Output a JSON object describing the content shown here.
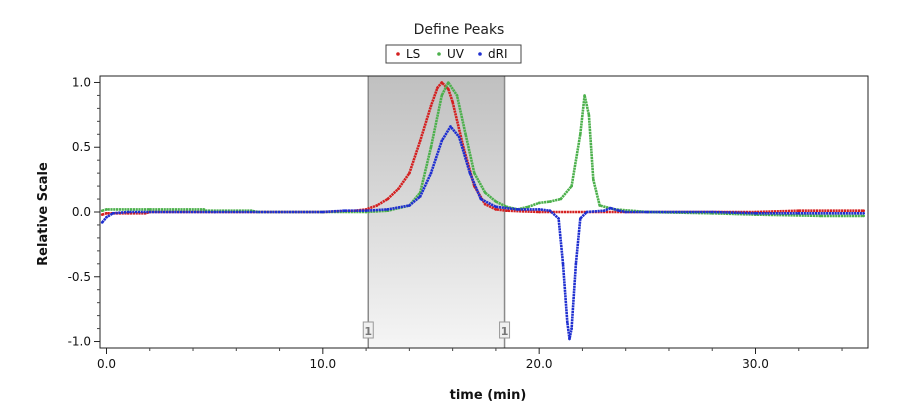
{
  "chart_data": {
    "type": "line",
    "title": "Define Peaks",
    "xlabel": "time (min)",
    "ylabel": "Relative Scale",
    "xlim": [
      -0.3,
      35.2
    ],
    "ylim": [
      -1.05,
      1.05
    ],
    "x_ticks": [
      0,
      10,
      20,
      30
    ],
    "x_tick_labels": [
      "0.0",
      "10.0",
      "20.0",
      "30.0"
    ],
    "y_ticks": [
      1,
      0.5,
      0,
      -0.5,
      -1
    ],
    "y_tick_labels": [
      "1.0",
      "0.5",
      "0.0",
      "-0.5",
      "-1.0"
    ],
    "legend_position": "top-center",
    "grid": false,
    "series": [
      {
        "name": "LS",
        "color": "#d42020",
        "points": [
          [
            -0.2,
            -0.02
          ],
          [
            0,
            -0.01
          ],
          [
            1,
            -0.01
          ],
          [
            1.8,
            -0.01
          ],
          [
            2,
            0
          ],
          [
            5,
            0
          ],
          [
            10,
            0
          ],
          [
            11.5,
            0.01
          ],
          [
            12,
            0.02
          ],
          [
            12.5,
            0.05
          ],
          [
            13,
            0.1
          ],
          [
            13.5,
            0.18
          ],
          [
            14,
            0.3
          ],
          [
            14.5,
            0.55
          ],
          [
            15,
            0.82
          ],
          [
            15.3,
            0.96
          ],
          [
            15.5,
            1.0
          ],
          [
            15.8,
            0.95
          ],
          [
            16,
            0.85
          ],
          [
            16.5,
            0.5
          ],
          [
            17,
            0.2
          ],
          [
            17.5,
            0.06
          ],
          [
            18,
            0.02
          ],
          [
            18.5,
            0.01
          ],
          [
            20,
            0
          ],
          [
            25,
            0
          ],
          [
            30,
            0
          ],
          [
            32,
            0.01
          ],
          [
            35,
            0.01
          ]
        ]
      },
      {
        "name": "UV",
        "color": "#4cb04c",
        "points": [
          [
            -0.2,
            0.01
          ],
          [
            0,
            0.02
          ],
          [
            2,
            0.02
          ],
          [
            4.5,
            0.02
          ],
          [
            4.6,
            0.01
          ],
          [
            6.7,
            0.01
          ],
          [
            7,
            0
          ],
          [
            10,
            0
          ],
          [
            12,
            0
          ],
          [
            13,
            0.01
          ],
          [
            14,
            0.05
          ],
          [
            14.5,
            0.15
          ],
          [
            15,
            0.5
          ],
          [
            15.5,
            0.9
          ],
          [
            15.8,
            1.0
          ],
          [
            16.2,
            0.9
          ],
          [
            16.6,
            0.6
          ],
          [
            17,
            0.3
          ],
          [
            17.5,
            0.15
          ],
          [
            18,
            0.08
          ],
          [
            18.5,
            0.04
          ],
          [
            19,
            0.02
          ],
          [
            19.5,
            0.04
          ],
          [
            20,
            0.07
          ],
          [
            20.5,
            0.08
          ],
          [
            21,
            0.1
          ],
          [
            21.5,
            0.2
          ],
          [
            21.9,
            0.6
          ],
          [
            22.1,
            0.9
          ],
          [
            22.3,
            0.75
          ],
          [
            22.5,
            0.25
          ],
          [
            22.8,
            0.05
          ],
          [
            23.5,
            0.02
          ],
          [
            25,
            0
          ],
          [
            28,
            -0.01
          ],
          [
            30,
            -0.02
          ],
          [
            33,
            -0.03
          ],
          [
            35,
            -0.03
          ]
        ]
      },
      {
        "name": "dRI",
        "color": "#1f2fd0",
        "points": [
          [
            -0.2,
            -0.08
          ],
          [
            0,
            -0.04
          ],
          [
            0.3,
            -0.01
          ],
          [
            1,
            0
          ],
          [
            5,
            0
          ],
          [
            10,
            0
          ],
          [
            11,
            0.01
          ],
          [
            12,
            0.01
          ],
          [
            13,
            0.02
          ],
          [
            14,
            0.05
          ],
          [
            14.5,
            0.12
          ],
          [
            15,
            0.3
          ],
          [
            15.5,
            0.55
          ],
          [
            15.9,
            0.66
          ],
          [
            16.3,
            0.58
          ],
          [
            16.8,
            0.3
          ],
          [
            17.3,
            0.1
          ],
          [
            18,
            0.04
          ],
          [
            19,
            0.02
          ],
          [
            20,
            0.02
          ],
          [
            20.5,
            0.01
          ],
          [
            20.9,
            -0.05
          ],
          [
            21.1,
            -0.4
          ],
          [
            21.3,
            -0.85
          ],
          [
            21.4,
            -0.98
          ],
          [
            21.5,
            -0.9
          ],
          [
            21.7,
            -0.4
          ],
          [
            21.9,
            -0.05
          ],
          [
            22.2,
            0
          ],
          [
            23,
            0.01
          ],
          [
            23.3,
            0.03
          ],
          [
            23.7,
            0.01
          ],
          [
            24,
            0
          ],
          [
            25,
            0
          ],
          [
            28,
            0
          ],
          [
            30,
            -0.01
          ],
          [
            32,
            -0.01
          ],
          [
            35,
            -0.01
          ]
        ]
      }
    ],
    "peak_region": {
      "start": 12.1,
      "end": 18.4,
      "label": "1"
    }
  }
}
